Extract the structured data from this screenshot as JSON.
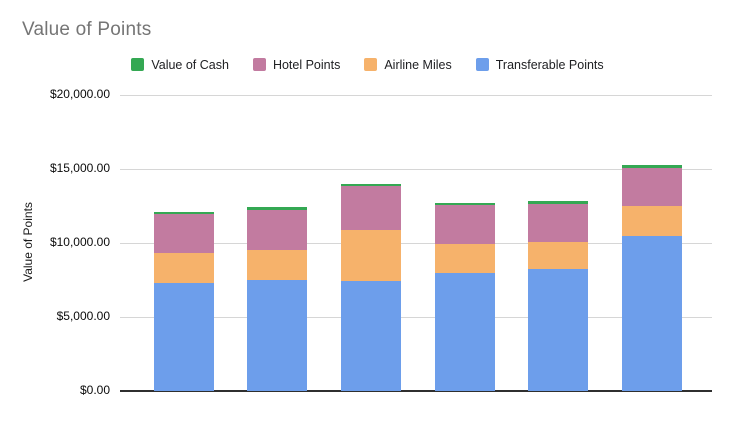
{
  "chart": {
    "title": "Value of Points"
  },
  "legend": {
    "position": "top",
    "items": [
      {
        "label": "Value of Cash",
        "color": "#34A853"
      },
      {
        "label": "Hotel Points",
        "color": "#C27BA0"
      },
      {
        "label": "Airline Miles",
        "color": "#F6B26B"
      },
      {
        "label": "Transferable Points",
        "color": "#6D9EEB"
      }
    ]
  },
  "chart_data": {
    "type": "bar",
    "stacked": true,
    "title": "Value of Points",
    "xlabel": "",
    "ylabel": "Value of Points",
    "ylim": [
      0,
      20000
    ],
    "ytick_values": [
      0,
      5000,
      10000,
      15000,
      20000
    ],
    "ytick_labels": [
      "$0.00",
      "$5,000.00",
      "$10,000.00",
      "$15,000.00",
      "$20,000.00"
    ],
    "grid": true,
    "legend_position": "top",
    "categories": [
      "",
      "",
      "",
      "",
      "",
      ""
    ],
    "series": [
      {
        "name": "Transferable Points",
        "color": "#6D9EEB",
        "values": [
          7300,
          7500,
          7400,
          8000,
          8250,
          10500
        ]
      },
      {
        "name": "Airline Miles",
        "color": "#F6B26B",
        "values": [
          2050,
          2050,
          3500,
          1950,
          1850,
          2000
        ]
      },
      {
        "name": "Hotel Points",
        "color": "#C27BA0",
        "values": [
          2600,
          2700,
          2950,
          2600,
          2550,
          2600
        ]
      },
      {
        "name": "Value of Cash",
        "color": "#34A853",
        "values": [
          150,
          150,
          150,
          150,
          180,
          200
        ]
      }
    ],
    "series_totals": [
      12100,
      12400,
      14000,
      12700,
      12830,
      15300
    ]
  },
  "colors": {
    "title_text": "#757575",
    "legend_text": "#202124",
    "axis_text": "#0b0b0b",
    "gridline": "#d6d6d6",
    "axis_line": "#2f2f2f",
    "background": "#ffffff"
  }
}
